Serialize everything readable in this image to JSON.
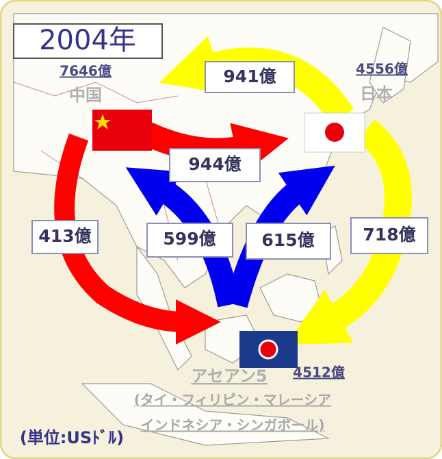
{
  "title": "2004年",
  "nodes": [
    {
      "name": "中国",
      "total": "7646億"
    },
    {
      "name": "日本",
      "total": "4556億"
    },
    {
      "name": "アセアン5",
      "total": "4512億",
      "members": [
        "(タイ・フィリピン・マレーシア",
        "インドネシア・シンガポール)"
      ]
    }
  ],
  "flows": [
    {
      "label": "941億"
    },
    {
      "label": "944億"
    },
    {
      "label": "413億"
    },
    {
      "label": "599億"
    },
    {
      "label": "615億"
    },
    {
      "label": "718億"
    }
  ],
  "unit": "(単位:USﾄﾞﾙ)"
}
